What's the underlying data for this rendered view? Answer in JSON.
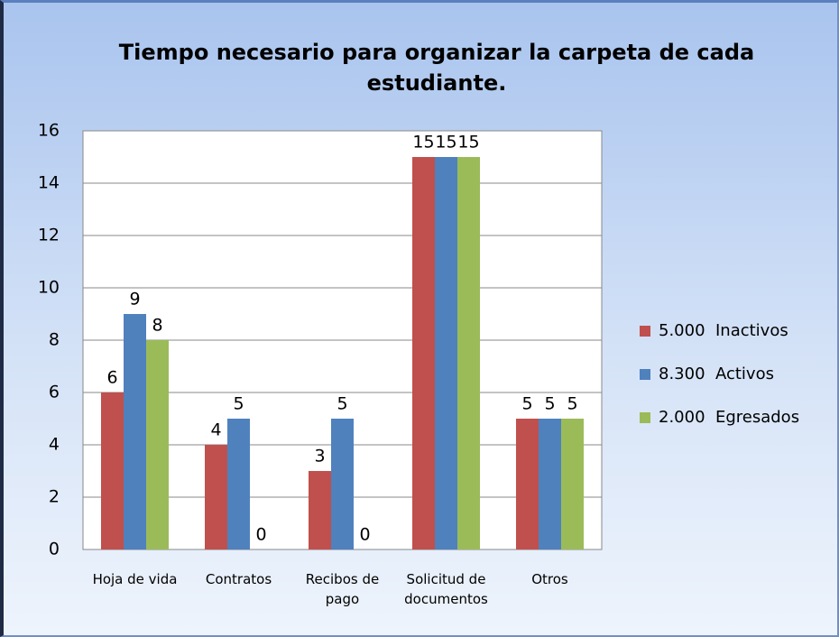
{
  "chart_data": {
    "type": "bar",
    "title": "Tiempo necesario para organizar la carpeta de cada estudiante.",
    "categories": [
      "Hoja de vida",
      "Contratos",
      "Recibos de pago",
      "Solicitud de documentos",
      "Otros"
    ],
    "series": [
      {
        "name": "5.000  Inactivos",
        "color": "#c0504d",
        "values": [
          6,
          4,
          3,
          15,
          5
        ]
      },
      {
        "name": "8.300  Activos",
        "color": "#4f81bd",
        "values": [
          9,
          5,
          5,
          15,
          5
        ]
      },
      {
        "name": "2.000  Egresados",
        "color": "#9bbb59",
        "values": [
          8,
          0,
          0,
          15,
          5
        ]
      }
    ],
    "ylim": [
      0,
      16
    ],
    "yticks": [
      0,
      2,
      4,
      6,
      8,
      10,
      12,
      14,
      16
    ],
    "grid": true,
    "legend": "right"
  }
}
